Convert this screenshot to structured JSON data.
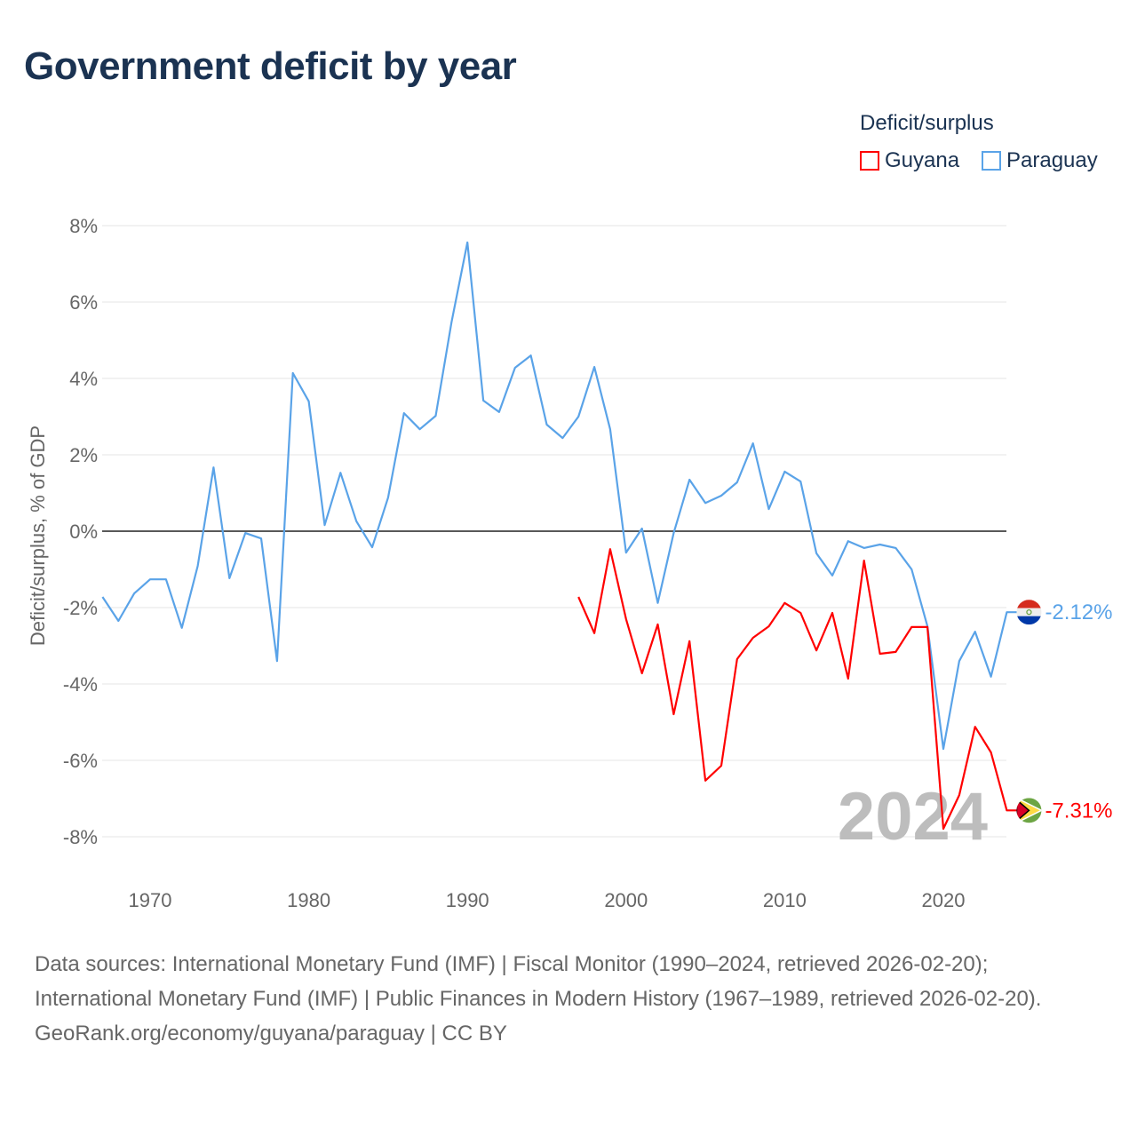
{
  "chart_data": {
    "type": "line",
    "title": "Government deficit by year",
    "ylabel": "Deficit/surplus, % of GDP",
    "xlabel": "",
    "ylim": [
      -9,
      8.5
    ],
    "xlim": [
      1967,
      2024
    ],
    "yticks": [
      8,
      6,
      4,
      2,
      0,
      -2,
      -4,
      -6,
      -8
    ],
    "ytick_labels": [
      "8%",
      "6%",
      "4%",
      "2%",
      "0%",
      "-2%",
      "-4%",
      "-6%",
      "-8%"
    ],
    "xticks": [
      1970,
      1980,
      1990,
      2000,
      2010,
      2020
    ],
    "xtick_labels": [
      "1970",
      "1980",
      "1990",
      "2000",
      "2010",
      "2020"
    ],
    "grid": true,
    "legend_title": "Deficit/surplus",
    "legend_position": "top-right",
    "year_watermark": "2024",
    "series": [
      {
        "name": "Guyana",
        "color": "#ff0000",
        "end_label": "-7.31%",
        "flag": "guyana-flag",
        "start_year": 1997,
        "values": [
          -1.72,
          -2.67,
          -0.47,
          -2.3,
          -3.72,
          -2.44,
          -4.79,
          -2.88,
          -6.53,
          -6.14,
          -3.35,
          -2.79,
          -2.49,
          -1.88,
          -2.14,
          -3.12,
          -2.14,
          -3.86,
          -0.77,
          -3.21,
          -3.16,
          -2.51,
          -2.51,
          -7.79,
          -6.91,
          -5.12,
          -5.79,
          -7.31
        ]
      },
      {
        "name": "Paraguay",
        "color": "#5aa3e8",
        "end_label": "-2.12%",
        "flag": "paraguay-flag",
        "start_year": 1967,
        "values": [
          -1.72,
          -2.35,
          -1.63,
          -1.26,
          -1.26,
          -2.53,
          -0.91,
          1.67,
          -1.23,
          -0.05,
          -0.19,
          -3.4,
          4.14,
          3.4,
          0.16,
          1.53,
          0.26,
          -0.42,
          0.88,
          3.09,
          2.67,
          3.02,
          5.47,
          7.56,
          3.42,
          3.12,
          4.28,
          4.6,
          2.79,
          2.44,
          3.0,
          4.3,
          2.67,
          -0.56,
          0.07,
          -1.88,
          -0.05,
          1.35,
          0.74,
          0.93,
          1.28,
          2.3,
          0.58,
          1.56,
          1.3,
          -0.58,
          -1.16,
          -0.26,
          -0.44,
          -0.35,
          -0.44,
          -1.0,
          -2.49,
          -5.7,
          -3.4,
          -2.63,
          -3.81,
          -2.12
        ]
      }
    ]
  },
  "footer": {
    "sources": "Data sources: International Monetary Fund (IMF) | Fiscal Monitor (1990–2024, retrieved 2026-02-20); International Monetary Fund (IMF) | Public Finances in Modern History (1967–1989, retrieved 2026-02-20).",
    "credit": "GeoRank.org/economy/guyana/paraguay | CC BY"
  }
}
